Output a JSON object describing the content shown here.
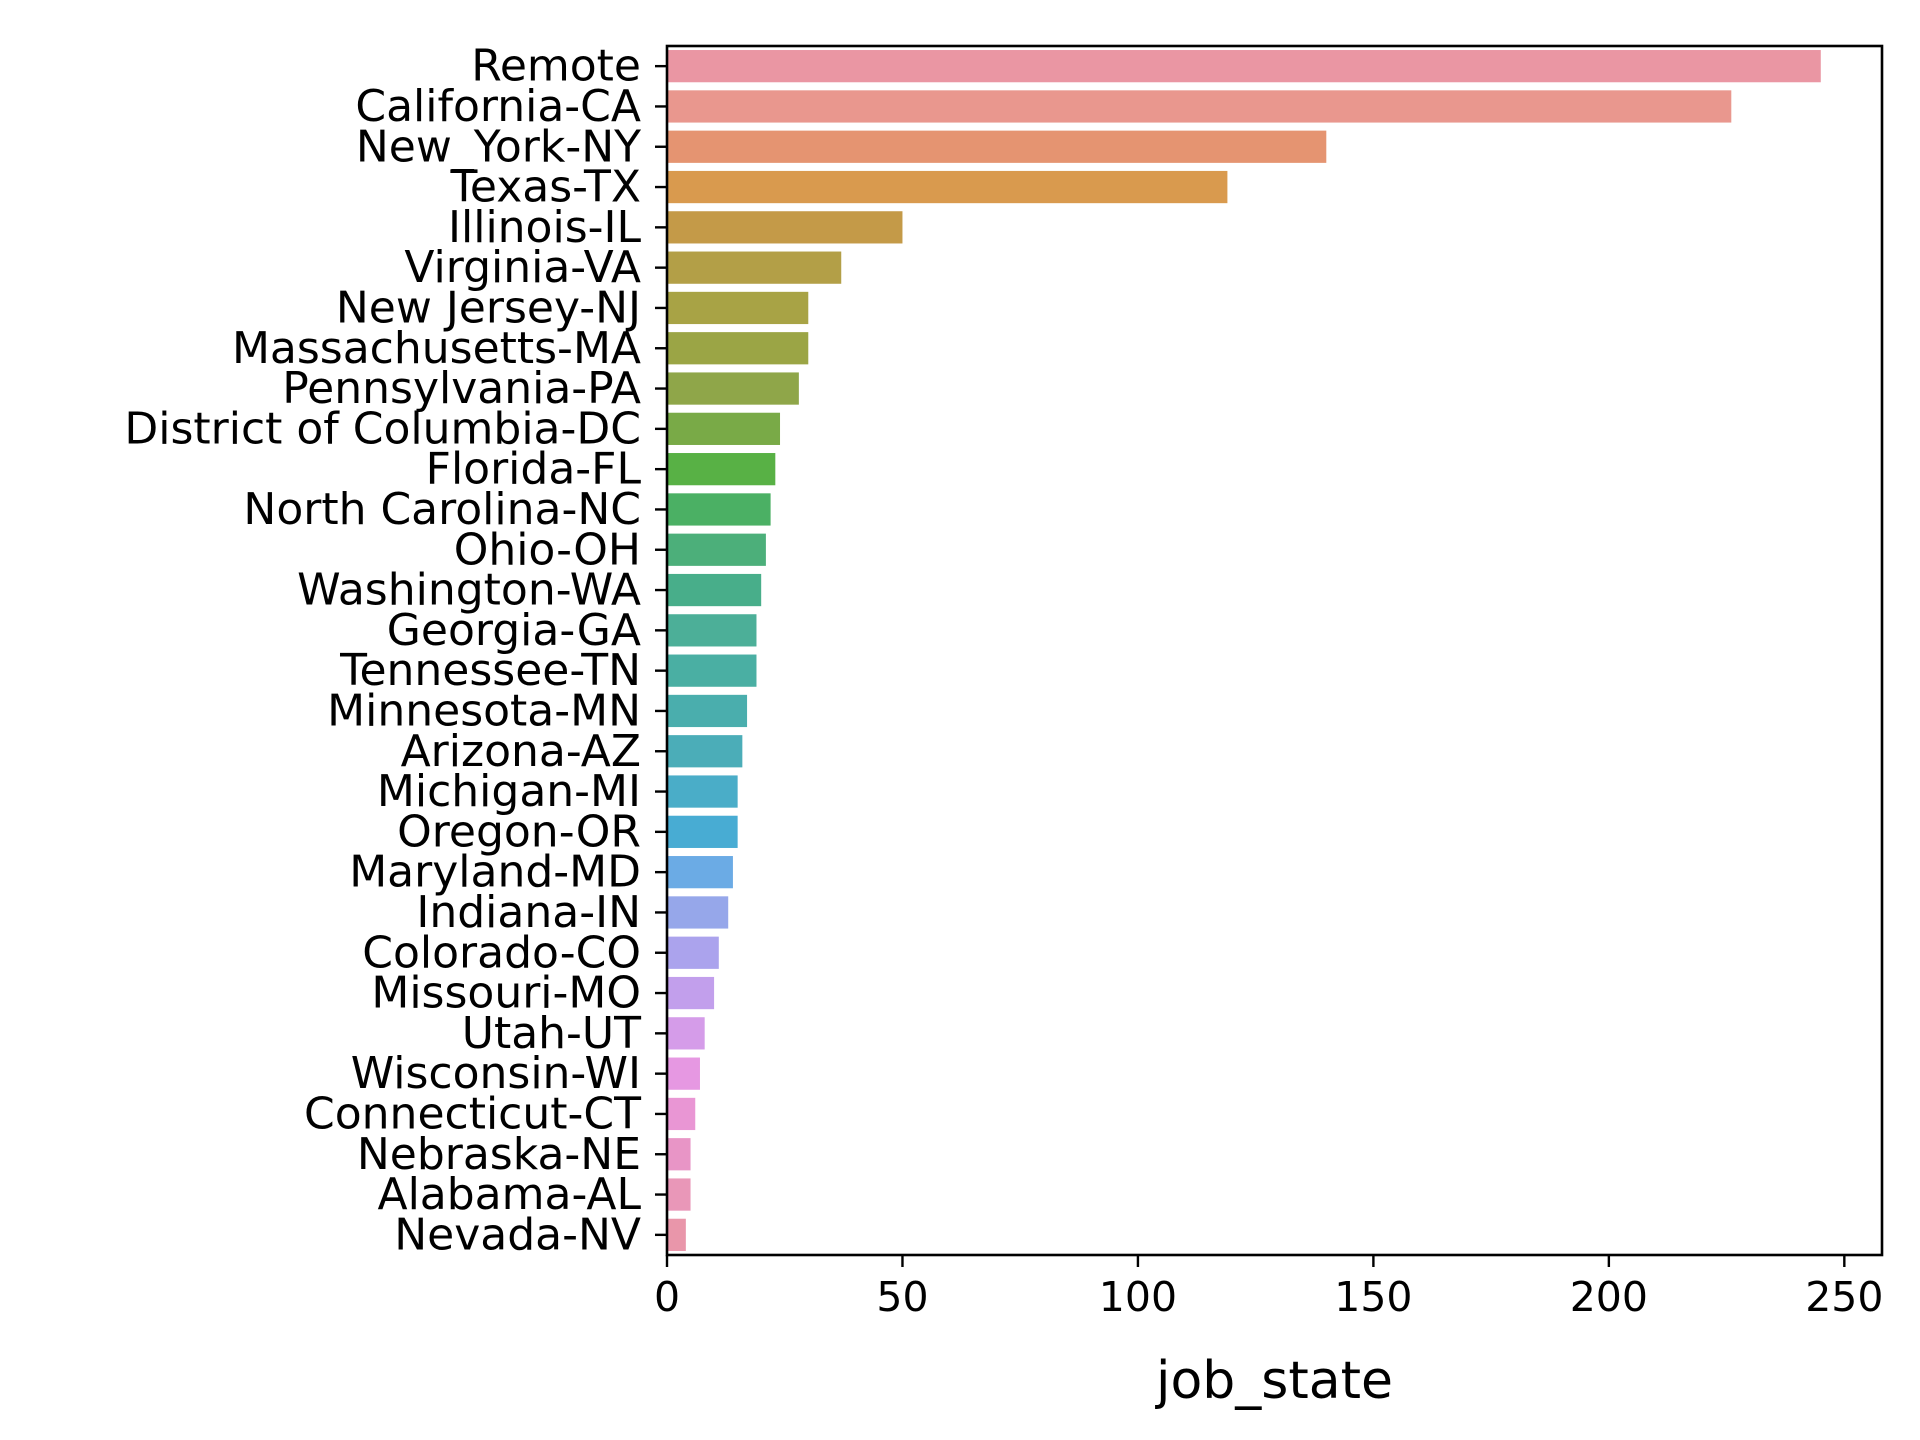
{
  "chart_data": {
    "type": "bar",
    "orientation": "horizontal",
    "title": "",
    "xlabel": "job_state",
    "ylabel": "",
    "xlim": [
      0,
      258
    ],
    "xticks": [
      0,
      50,
      100,
      150,
      200,
      250
    ],
    "grid": false,
    "categories": [
      "Remote",
      "California-CA",
      "New_York-NY",
      "Texas-TX",
      "Illinois-IL",
      "Virginia-VA",
      "New Jersey-NJ",
      "Massachusetts-MA",
      "Pennsylvania-PA",
      "District of Columbia-DC",
      "Florida-FL",
      "North Carolina-NC",
      "Ohio-OH",
      "Washington-WA",
      "Georgia-GA",
      "Tennessee-TN",
      "Minnesota-MN",
      "Arizona-AZ",
      "Michigan-MI",
      "Oregon-OR",
      "Maryland-MD",
      "Indiana-IN",
      "Colorado-CO",
      "Missouri-MO",
      "Utah-UT",
      "Wisconsin-WI",
      "Connecticut-CT",
      "Nebraska-NE",
      "Alabama-AL",
      "Nevada-NV"
    ],
    "values": [
      245,
      226,
      140,
      119,
      50,
      37,
      30,
      30,
      28,
      24,
      23,
      22,
      21,
      20,
      19,
      19,
      17,
      16,
      15,
      15,
      14,
      13,
      11,
      10,
      8,
      7,
      6,
      5,
      5,
      4
    ],
    "colors": [
      "#ea96a3",
      "#e9978e",
      "#e59471",
      "#d99a4e",
      "#c49a48",
      "#b39f47",
      "#a8a345",
      "#9ba545",
      "#8fa649",
      "#79aa47",
      "#58b145",
      "#4bb064",
      "#4caf7a",
      "#48ae8a",
      "#4caf98",
      "#4aafa3",
      "#4aaead",
      "#4badb8",
      "#4aadc8",
      "#48acd3",
      "#6babe5",
      "#96a7ea",
      "#aba3ed",
      "#c29fec",
      "#d59ce9",
      "#e698e2",
      "#e996d4",
      "#e895c6",
      "#e997b8",
      "#e996aa"
    ]
  }
}
